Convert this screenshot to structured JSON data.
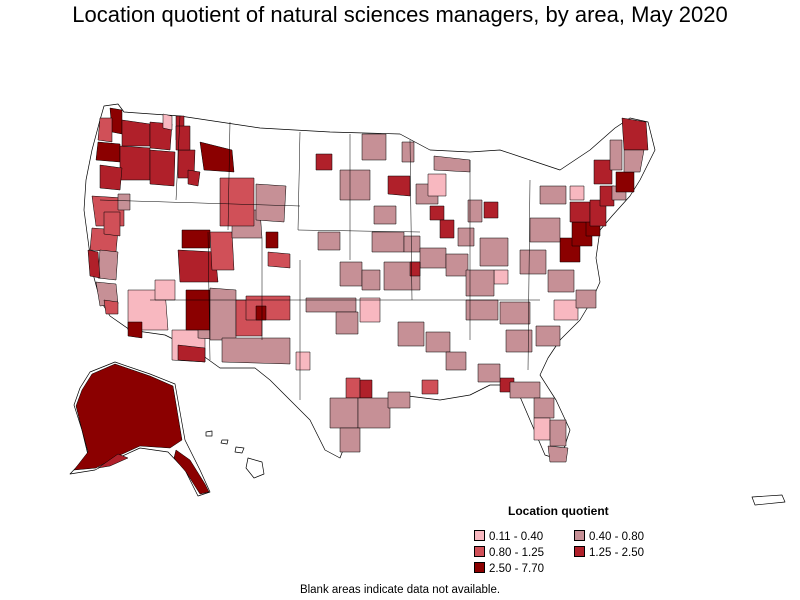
{
  "title": "Location quotient of natural sciences managers, by area, May 2020",
  "legend": {
    "title": "Location quotient",
    "items": [
      {
        "label": "0.11 - 0.40",
        "color": "#f8b8c0"
      },
      {
        "label": "0.40 - 0.80",
        "color": "#c69096"
      },
      {
        "label": "0.80 - 1.25",
        "color": "#d05058"
      },
      {
        "label": "1.25 - 2.50",
        "color": "#b0202a"
      },
      {
        "label": "2.50 - 7.70",
        "color": "#8b0000"
      }
    ]
  },
  "note": "Blank areas indicate data not available.",
  "colors": {
    "no_data": "#ffffff",
    "border": "#000000",
    "q1": "#f8b8c0",
    "q2": "#c69096",
    "q3": "#d05058",
    "q4": "#b0202a",
    "q5": "#8b0000"
  }
}
